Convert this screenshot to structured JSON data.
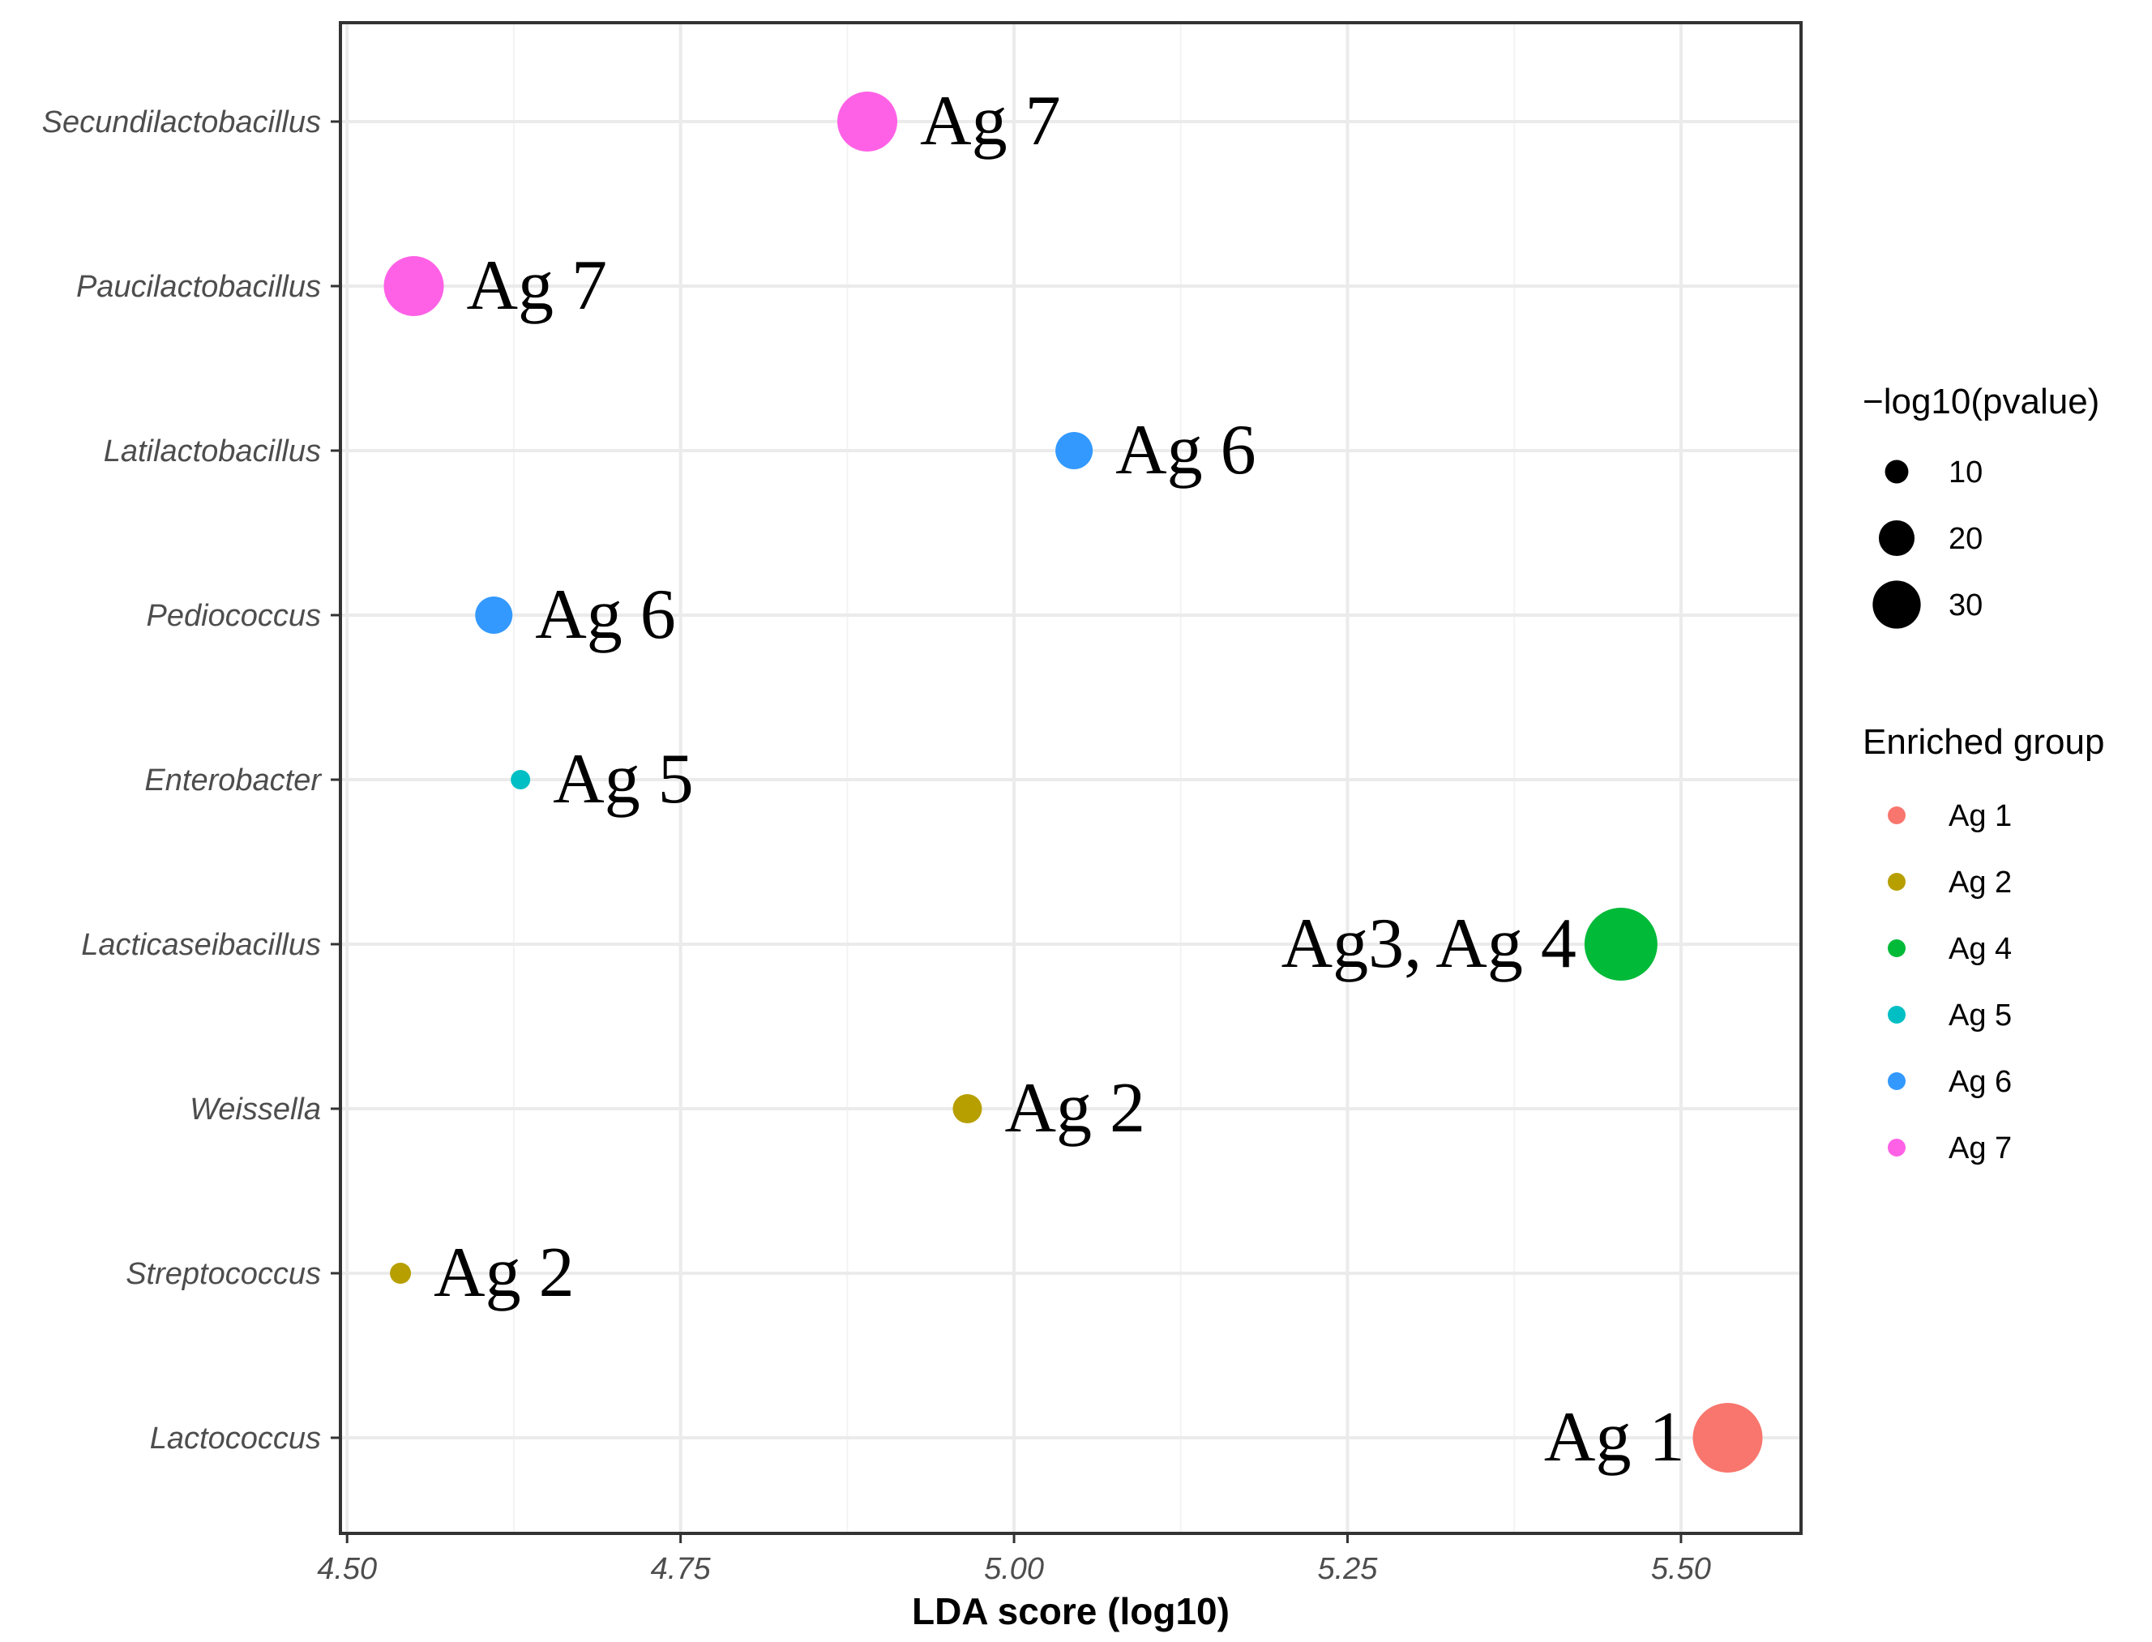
{
  "chart_data": {
    "type": "scatter",
    "xlabel": "LDA score (log10)",
    "ylabel": "",
    "xlim": [
      4.495,
      5.59
    ],
    "xticks": [
      "4.50",
      "4.75",
      "5.00",
      "5.25",
      "5.50"
    ],
    "categories": [
      "Secundilactobacillus",
      "Paucilactobacillus",
      "Latilactobacillus",
      "Pediococcus",
      "Enterobacter",
      "Lacticaseibacillus",
      "Weissella",
      "Streptococcus",
      "Lactococcus"
    ],
    "points": [
      {
        "category": "Secundilactobacillus",
        "x": 4.89,
        "pvalue_log10": 28,
        "group": "Ag 7",
        "label": "Ag 7",
        "label_side": "right"
      },
      {
        "category": "Paucilactobacillus",
        "x": 4.55,
        "pvalue_log10": 28,
        "group": "Ag 7",
        "label": "Ag 7",
        "label_side": "right"
      },
      {
        "category": "Latilactobacillus",
        "x": 5.045,
        "pvalue_log10": 14,
        "group": "Ag 6",
        "label": "Ag 6",
        "label_side": "right"
      },
      {
        "category": "Pediococcus",
        "x": 4.61,
        "pvalue_log10": 14,
        "group": "Ag 6",
        "label": "Ag 6",
        "label_side": "right"
      },
      {
        "category": "Enterobacter",
        "x": 4.63,
        "pvalue_log10": 3,
        "group": "Ag 5",
        "label": "Ag 5",
        "label_side": "right"
      },
      {
        "category": "Lacticaseibacillus",
        "x": 5.455,
        "pvalue_log10": 36,
        "group": "Ag 4",
        "label": "Ag3, Ag 4",
        "label_side": "left"
      },
      {
        "category": "Weissella",
        "x": 4.965,
        "pvalue_log10": 9,
        "group": "Ag 2",
        "label": "Ag 2",
        "label_side": "right"
      },
      {
        "category": "Streptococcus",
        "x": 4.54,
        "pvalue_log10": 4,
        "group": "Ag 2",
        "label": "Ag 2",
        "label_side": "right"
      },
      {
        "category": "Lactococcus",
        "x": 5.535,
        "pvalue_log10": 34,
        "group": "Ag 1",
        "label": "Ag 1",
        "label_side": "left"
      }
    ],
    "legend_size": {
      "title": "−log10(pvalue)",
      "entries": [
        {
          "label": "10",
          "value": 10
        },
        {
          "label": "20",
          "value": 20
        },
        {
          "label": "30",
          "value": 30
        }
      ]
    },
    "legend_color": {
      "title": "Enriched group",
      "entries": [
        {
          "label": "Ag 1",
          "color": "#F8766D"
        },
        {
          "label": "Ag 2",
          "color": "#B79F00"
        },
        {
          "label": "Ag 4",
          "color": "#00BA38"
        },
        {
          "label": "Ag 5",
          "color": "#00BFC4"
        },
        {
          "label": "Ag 6",
          "color": "#3399FF"
        },
        {
          "label": "Ag 7",
          "color": "#FF61E6"
        }
      ]
    },
    "legend_position": "right",
    "grid": true
  }
}
